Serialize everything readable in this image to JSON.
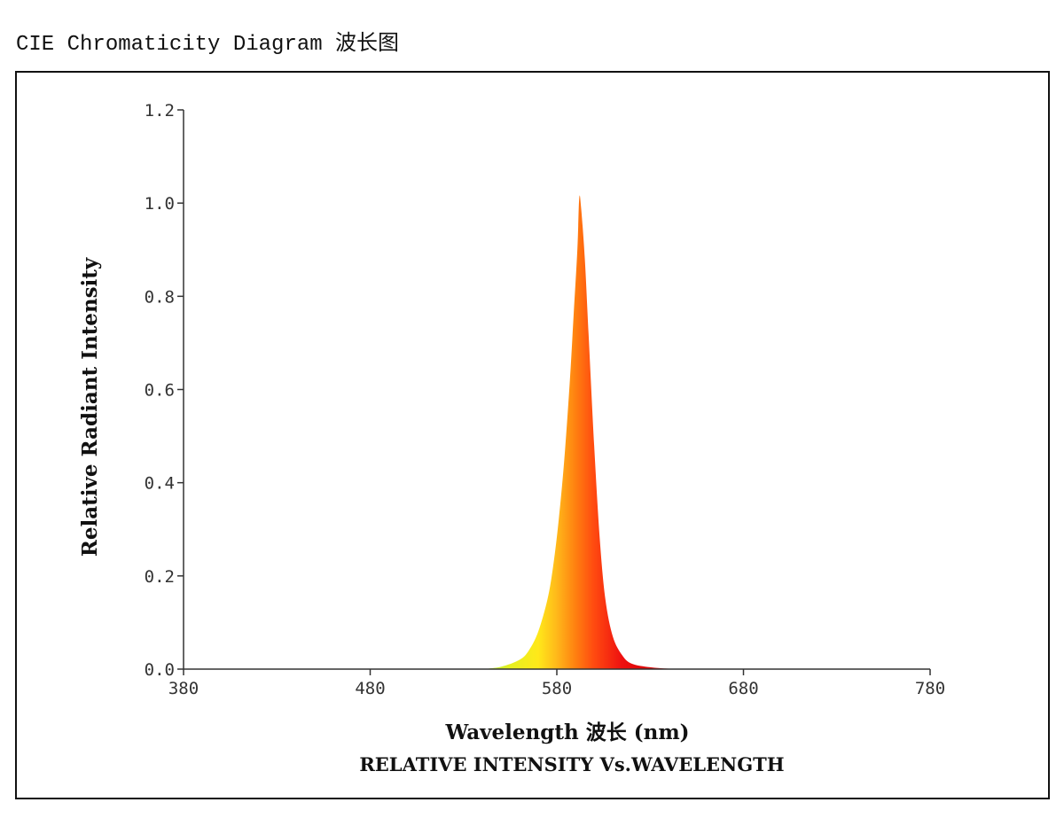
{
  "page": {
    "title": "CIE Chromaticity Diagram 波长图"
  },
  "chart_data": {
    "type": "area",
    "title": "",
    "subtitle": "RELATIVE INTENSITY Vs.WAVELENGTH",
    "xlabel": "Wavelength 波长 (nm)",
    "ylabel": "Relative Radiant Intensity",
    "xlim": [
      380,
      780
    ],
    "ylim": [
      0,
      1.2
    ],
    "x_ticks": [
      "380",
      "480",
      "580",
      "680",
      "780"
    ],
    "y_ticks": [
      "0.0",
      "0.2",
      "0.4",
      "0.6",
      "0.8",
      "1.0",
      "1.2"
    ],
    "grid": false,
    "legend": "none",
    "peak_wavelength": 592,
    "series": [
      {
        "x": [
          540,
          550,
          560,
          565,
          570,
          575,
          578,
          581,
          584,
          587,
          589,
          591,
          592,
          593,
          595,
          597,
          600,
          603,
          606,
          610,
          615,
          620,
          630,
          640,
          650
        ],
        "y": [
          0.0,
          0.005,
          0.02,
          0.04,
          0.08,
          0.15,
          0.22,
          0.32,
          0.45,
          0.62,
          0.76,
          0.9,
          1.01,
          0.99,
          0.88,
          0.72,
          0.48,
          0.28,
          0.15,
          0.07,
          0.03,
          0.012,
          0.004,
          0.001,
          0.0
        ]
      }
    ],
    "fill_gradient": {
      "stops_nm": [
        540,
        555,
        570,
        580,
        590,
        600,
        615,
        640
      ],
      "colors": [
        "#a8f040",
        "#e6f020",
        "#ffe81a",
        "#ffb81a",
        "#ff8010",
        "#ff4a10",
        "#ee1010",
        "#cc0000"
      ]
    },
    "axis_color": "#333333"
  }
}
